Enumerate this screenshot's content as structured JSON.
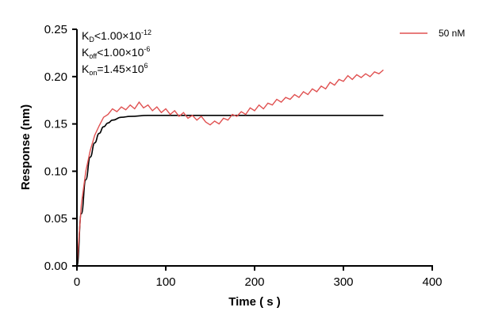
{
  "chart_data": {
    "type": "line",
    "title": "",
    "xlabel": "Time ( s )",
    "ylabel": "Response (nm)",
    "xlim": [
      0,
      400
    ],
    "ylim": [
      0,
      0.25
    ],
    "xticks": [
      "0",
      "100",
      "200",
      "300",
      "400"
    ],
    "yticks": [
      "0.00",
      "0.05",
      "0.10",
      "0.15",
      "0.20",
      "0.25"
    ],
    "grid": false,
    "legend": {
      "position": "top-right",
      "entries": [
        "50 nM"
      ]
    },
    "annotations": {
      "kd": {
        "base": "K",
        "sub": "D",
        "rel": "<1.00×10",
        "exp": "-12"
      },
      "koff": {
        "base": "K",
        "sub": "off",
        "rel": "<1.00×10",
        "exp": "-6"
      },
      "kon": {
        "base": "K",
        "sub": "on",
        "rel": "=1.45×10",
        "exp": "6"
      }
    },
    "colors": {
      "data": "#e05050",
      "fit": "#000000"
    },
    "series": [
      {
        "name": "50 nM",
        "role": "measured",
        "x": [
          0,
          5,
          10,
          15,
          20,
          25,
          30,
          35,
          40,
          45,
          50,
          55,
          60,
          65,
          70,
          75,
          80,
          85,
          90,
          95,
          100,
          105,
          110,
          115,
          120,
          125,
          130,
          135,
          140,
          145,
          150,
          155,
          160,
          165,
          170,
          175,
          180,
          185,
          190,
          195,
          200,
          205,
          210,
          215,
          220,
          225,
          230,
          235,
          240,
          245,
          250,
          255,
          260,
          265,
          270,
          275,
          280,
          285,
          290,
          295,
          300,
          305,
          310,
          315,
          320,
          325,
          330,
          335,
          340,
          345
        ],
        "y": [
          0.0,
          0.065,
          0.1,
          0.122,
          0.138,
          0.148,
          0.157,
          0.16,
          0.166,
          0.163,
          0.168,
          0.165,
          0.17,
          0.166,
          0.173,
          0.167,
          0.17,
          0.164,
          0.168,
          0.162,
          0.166,
          0.16,
          0.164,
          0.158,
          0.162,
          0.156,
          0.159,
          0.154,
          0.158,
          0.152,
          0.149,
          0.153,
          0.15,
          0.156,
          0.154,
          0.16,
          0.158,
          0.163,
          0.16,
          0.167,
          0.164,
          0.17,
          0.166,
          0.172,
          0.17,
          0.176,
          0.173,
          0.178,
          0.176,
          0.181,
          0.178,
          0.184,
          0.181,
          0.187,
          0.184,
          0.19,
          0.187,
          0.194,
          0.191,
          0.197,
          0.195,
          0.201,
          0.197,
          0.202,
          0.199,
          0.203,
          0.2,
          0.205,
          0.203,
          0.207
        ]
      },
      {
        "role": "fit",
        "x": [
          0,
          5,
          10,
          15,
          20,
          25,
          30,
          35,
          40,
          50,
          60,
          80,
          345
        ],
        "y": [
          0,
          0.055,
          0.091,
          0.115,
          0.13,
          0.14,
          0.147,
          0.151,
          0.154,
          0.157,
          0.158,
          0.159,
          0.159
        ]
      }
    ]
  }
}
